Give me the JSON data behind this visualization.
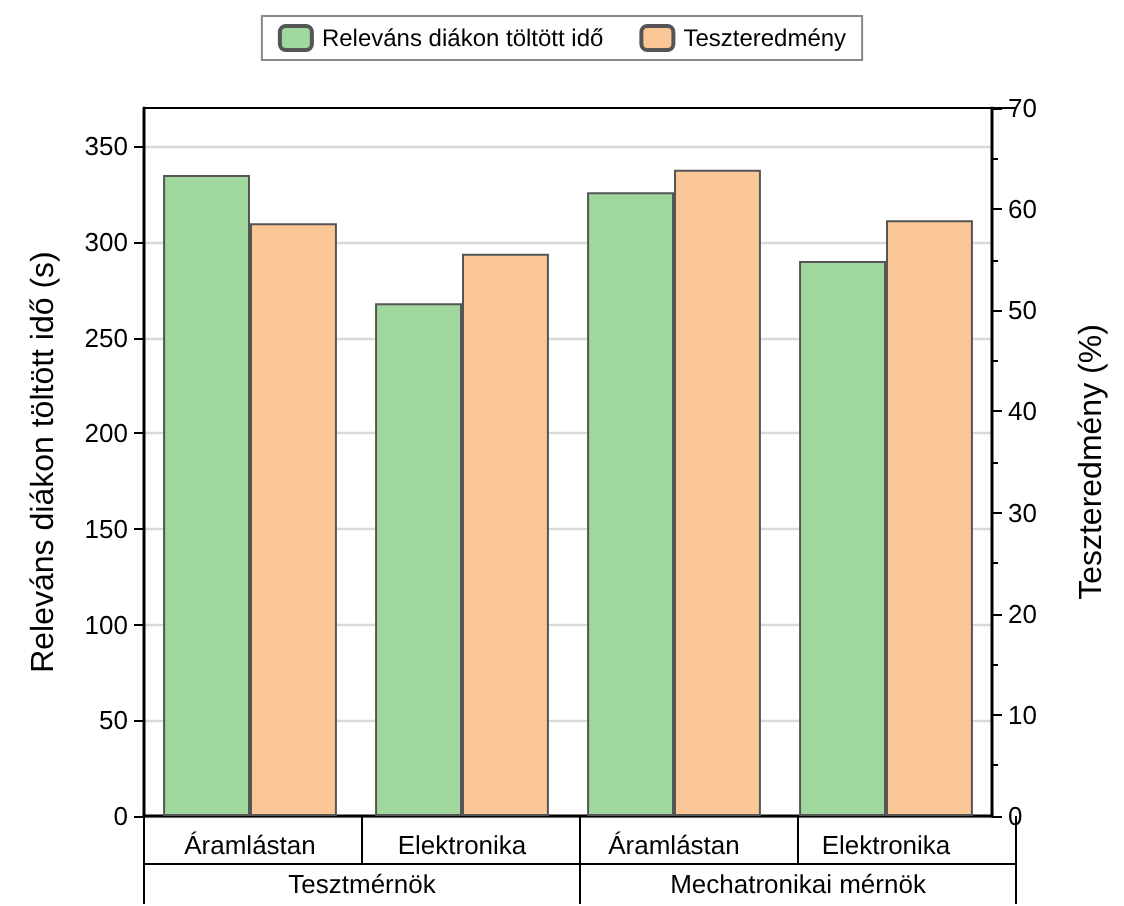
{
  "chart_data": {
    "type": "bar",
    "categories": [
      "Áramlástan",
      "Elektronika",
      "Áramlástan",
      "Elektronika"
    ],
    "series": [
      {
        "name": "Releváns diákon töltött idő",
        "color": "#9fd79c",
        "values": [
          335,
          268,
          326,
          290
        ]
      },
      {
        "name": "Teszteredmény",
        "color": "#fbc796",
        "values": [
          58.6,
          55.6,
          63.9,
          58.9
        ],
        "axis": "y2"
      }
    ],
    "ylabel": "Releváns diákon töltött idő (s)",
    "y2label": "Teszteredmény (%)",
    "ylim": [
      0,
      370
    ],
    "yticks": [
      0,
      50,
      100,
      150,
      200,
      250,
      300,
      350
    ],
    "y2lim": [
      0,
      70
    ],
    "y2ticks": [
      0,
      10,
      20,
      30,
      40,
      50,
      60,
      70
    ],
    "annotations": [
      "Tesztmérnök",
      "Mechatronikai mérnök"
    ],
    "grid": "y",
    "legend": "top"
  }
}
